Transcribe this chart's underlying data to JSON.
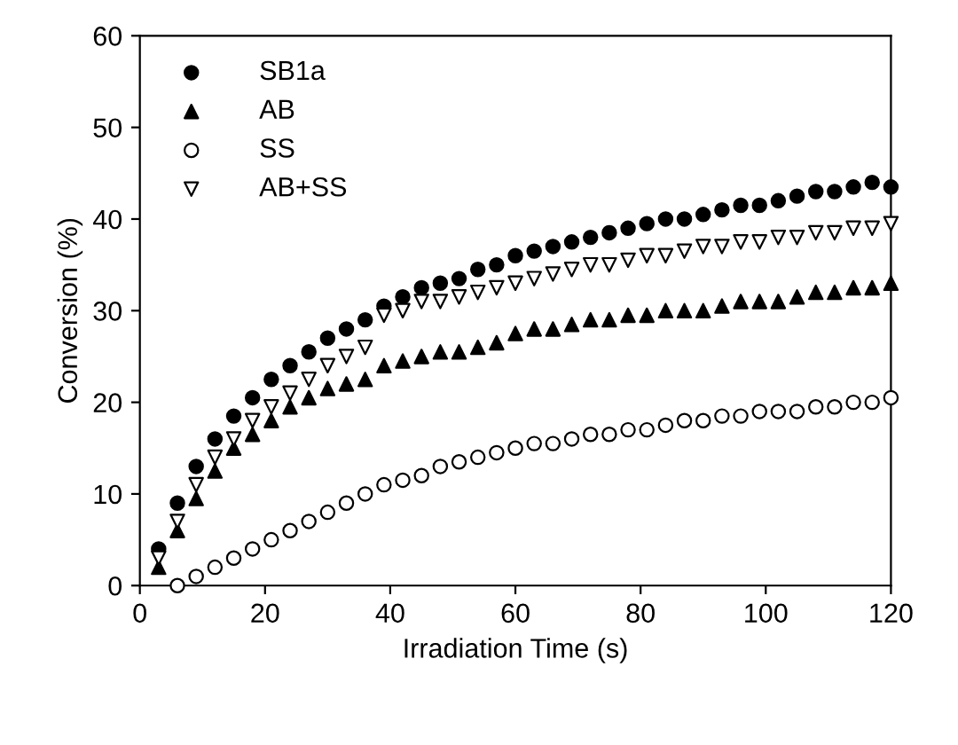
{
  "chart_data": {
    "type": "scatter",
    "xlabel": "Irradiation Time (s)",
    "ylabel": "Conversion (%)",
    "xlim": [
      0,
      120
    ],
    "xticks": [
      0,
      20,
      40,
      60,
      80,
      100,
      120
    ],
    "ylim": [
      0,
      60
    ],
    "yticks": [
      0,
      10,
      20,
      30,
      40,
      50,
      60
    ],
    "grid": false,
    "legend": "top left",
    "x": [
      3,
      6,
      9,
      12,
      15,
      18,
      21,
      24,
      27,
      30,
      33,
      36,
      39,
      42,
      45,
      48,
      51,
      54,
      57,
      60,
      63,
      66,
      69,
      72,
      75,
      78,
      81,
      84,
      87,
      90,
      93,
      96,
      99,
      102,
      105,
      108,
      111,
      114,
      117,
      120
    ],
    "series": [
      {
        "name": "SB1a",
        "color": "#000000",
        "marker": "circle",
        "values": [
          4,
          9,
          13,
          16,
          18.5,
          20.5,
          22.5,
          24,
          25.5,
          27,
          28,
          29,
          30.5,
          31.5,
          32.5,
          33,
          33.5,
          34.5,
          35,
          36,
          36.5,
          37,
          37.5,
          38,
          38.5,
          39,
          39.5,
          40,
          40,
          40.5,
          41,
          41.5,
          41.5,
          42,
          42.5,
          43,
          43,
          43.5,
          44,
          43.5
        ]
      },
      {
        "name": "AB",
        "color": "#000000",
        "marker": "triangle",
        "values": [
          2,
          6,
          9.5,
          12.5,
          15,
          16.5,
          18,
          19.5,
          20.5,
          21.5,
          22,
          22.5,
          24,
          24.5,
          25,
          25.5,
          25.5,
          26,
          26.5,
          27.5,
          28,
          28,
          28.5,
          29,
          29,
          29.5,
          29.5,
          30,
          30,
          30,
          30.5,
          31,
          31,
          31,
          31.5,
          32,
          32,
          32.5,
          32.5,
          33
        ]
      },
      {
        "name": "SS",
        "color": "#ffffff",
        "marker": "circle",
        "x": [
          6,
          9,
          12,
          15,
          18,
          21,
          24,
          27,
          30,
          33,
          36,
          39,
          42,
          45,
          48,
          51,
          54,
          57,
          60,
          63,
          66,
          69,
          72,
          75,
          78,
          81,
          84,
          87,
          90,
          93,
          96,
          99,
          102,
          105,
          108,
          111,
          114,
          117,
          120
        ],
        "values": [
          0,
          1,
          2,
          3,
          4,
          5,
          6,
          7,
          8,
          9,
          10,
          11,
          11.5,
          12,
          13,
          13.5,
          14,
          14.5,
          15,
          15.5,
          15.5,
          16,
          16.5,
          16.5,
          17,
          17,
          17.5,
          18,
          18,
          18.5,
          18.5,
          19,
          19,
          19,
          19.5,
          19.5,
          20,
          20,
          20.5
        ]
      },
      {
        "name": "AB+SS",
        "color": "#ffffff",
        "marker": "triangle-down",
        "values": [
          3,
          7,
          11,
          14,
          16,
          18,
          19.5,
          21,
          22.5,
          24,
          25,
          26,
          29.5,
          30,
          31,
          31,
          31.5,
          32,
          32.5,
          33,
          33.5,
          34,
          34.5,
          35,
          35,
          35.5,
          36,
          36,
          36.5,
          37,
          37,
          37.5,
          37.5,
          38,
          38,
          38.5,
          38.5,
          39,
          39,
          39.5
        ]
      }
    ]
  }
}
